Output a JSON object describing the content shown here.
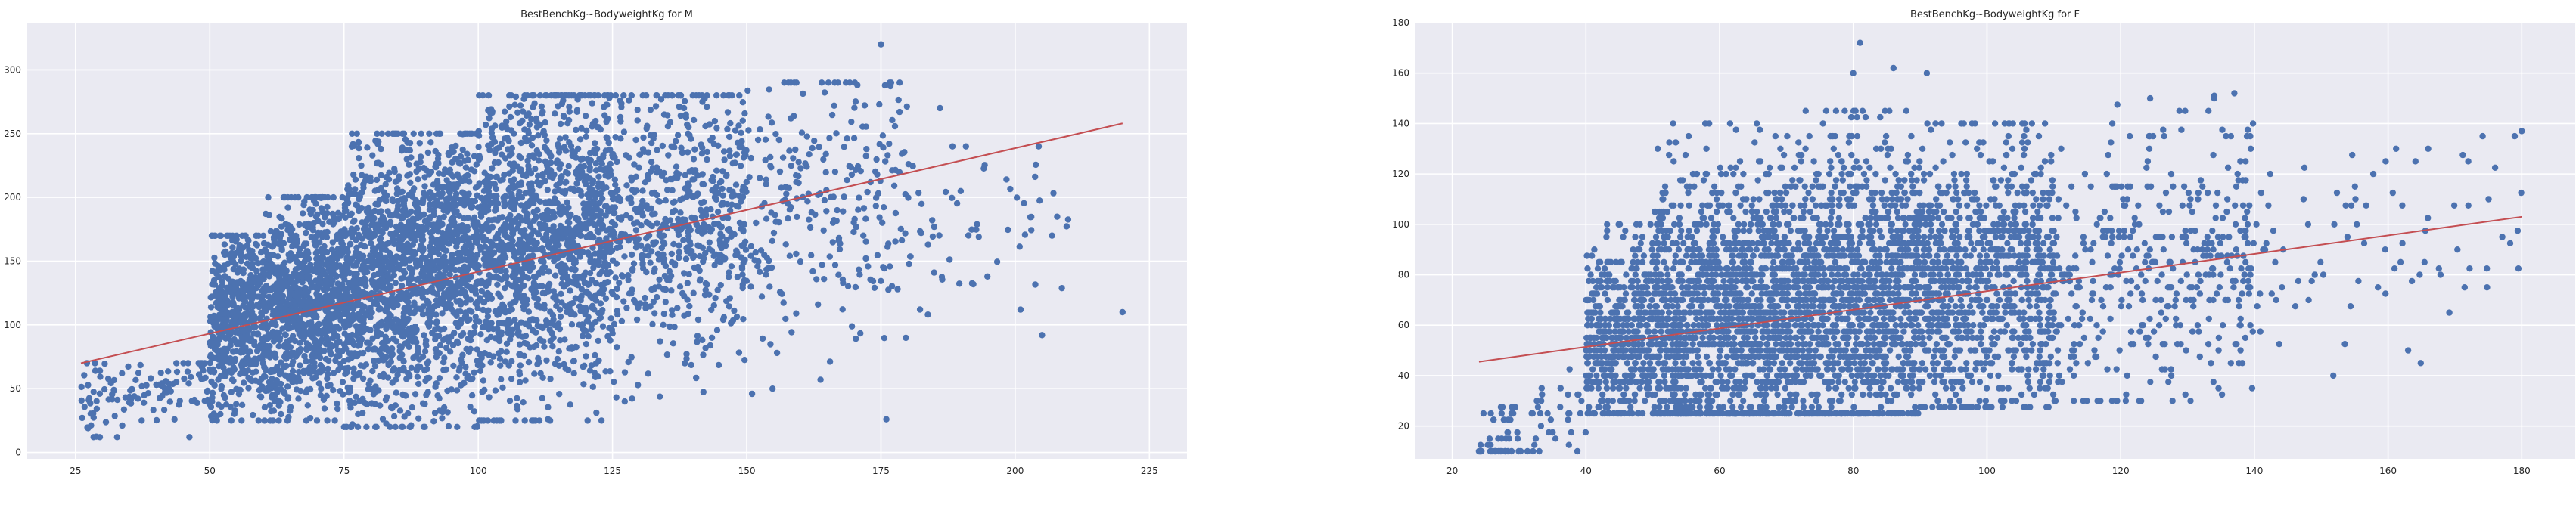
{
  "colors": {
    "background": "#eaeaf2",
    "grid": "#ffffff",
    "points": "#4c72b0",
    "fit_line": "#c44e52"
  },
  "chart_data": [
    {
      "type": "scatter",
      "title": "BestBenchKg~BodyweightKg for M",
      "xlabel": "",
      "ylabel": "",
      "xlim": [
        16,
        232
      ],
      "ylim": [
        -5,
        337
      ],
      "xticks": [
        "25",
        "50",
        "75",
        "100",
        "125",
        "150",
        "175",
        "200",
        "225"
      ],
      "yticks": [
        "0",
        "50",
        "100",
        "150",
        "200",
        "250",
        "300"
      ],
      "grid": true,
      "series": [
        {
          "kind": "points",
          "cloud": [
            {
              "x": [
                26,
                50
              ],
              "y_low": 12,
              "y_high": 70,
              "trend": [
                0.9,
                15
              ],
              "n": 120
            },
            {
              "x": [
                50,
                60
              ],
              "y_low": 25,
              "y_high": 170,
              "trend": [
                1.35,
                30
              ],
              "n": 500
            },
            {
              "x": [
                60,
                75
              ],
              "y_low": 25,
              "y_high": 200,
              "trend": [
                1.3,
                30
              ],
              "n": 900
            },
            {
              "x": [
                75,
                100
              ],
              "y_low": 20,
              "y_high": 250,
              "trend": [
                1.2,
                35
              ],
              "n": 1500
            },
            {
              "x": [
                100,
                125
              ],
              "y_low": 25,
              "y_high": 280,
              "trend": [
                1.05,
                50
              ],
              "n": 1300
            },
            {
              "x": [
                125,
                150
              ],
              "y_low": 40,
              "y_high": 280,
              "trend": [
                0.75,
                80
              ],
              "n": 600
            },
            {
              "x": [
                150,
                180
              ],
              "y_low": 50,
              "y_high": 290,
              "trend": [
                0.7,
                85
              ],
              "n": 250
            },
            {
              "x": [
                180,
                210
              ],
              "y_low": 80,
              "y_high": 240,
              "trend": [
                0.6,
                65
              ],
              "n": 60
            }
          ],
          "notable": [
            {
              "x": 175,
              "y": 320
            },
            {
              "x": 220,
              "y": 110
            },
            {
              "x": 205,
              "y": 92
            },
            {
              "x": 201,
              "y": 112
            },
            {
              "x": 176,
              "y": 26
            },
            {
              "x": 151,
              "y": 46
            },
            {
              "x": 113,
              "y": 26
            },
            {
              "x": 167,
              "y": 290
            },
            {
              "x": 186,
              "y": 270
            }
          ]
        },
        {
          "kind": "fit-line",
          "x": [
            26,
            220
          ],
          "y": [
            70,
            258
          ]
        }
      ]
    },
    {
      "type": "scatter",
      "title": "BestBenchKg~BodyweightKg for F",
      "xlabel": "",
      "ylabel": "",
      "xlim": [
        14.5,
        188
      ],
      "ylim": [
        7,
        180
      ],
      "xticks": [
        "20",
        "40",
        "60",
        "80",
        "100",
        "120",
        "140",
        "160",
        "180"
      ],
      "yticks": [
        "20",
        "40",
        "60",
        "80",
        "100",
        "120",
        "140",
        "160",
        "180"
      ],
      "grid": true,
      "series": [
        {
          "kind": "points",
          "cloud": [
            {
              "x": [
                24,
                40
              ],
              "y_low": 10,
              "y_high": 50,
              "trend": [
                1.1,
                -15
              ],
              "n": 80
            },
            {
              "x": [
                40,
                50
              ],
              "y_low": 25,
              "y_high": 100,
              "trend": [
                0.6,
                30
              ],
              "n": 500
            },
            {
              "x": [
                50,
                70
              ],
              "y_low": 25,
              "y_high": 140,
              "trend": [
                0.5,
                35
              ],
              "n": 1400
            },
            {
              "x": [
                70,
                90
              ],
              "y_low": 25,
              "y_high": 145,
              "trend": [
                0.4,
                40
              ],
              "n": 1400
            },
            {
              "x": [
                90,
                110
              ],
              "y_low": 28,
              "y_high": 140,
              "trend": [
                0.35,
                42
              ],
              "n": 900
            },
            {
              "x": [
                110,
                140
              ],
              "y_low": 30,
              "y_high": 150,
              "trend": [
                0.3,
                45
              ],
              "n": 400
            },
            {
              "x": [
                140,
                180
              ],
              "y_low": 40,
              "y_high": 135,
              "trend": [
                0.25,
                50
              ],
              "n": 80
            }
          ],
          "notable": [
            {
              "x": 81,
              "y": 172
            },
            {
              "x": 80,
              "y": 160
            },
            {
              "x": 86,
              "y": 162
            },
            {
              "x": 91,
              "y": 160
            },
            {
              "x": 24,
              "y": 10
            },
            {
              "x": 180,
              "y": 137
            },
            {
              "x": 163,
              "y": 50
            },
            {
              "x": 172,
              "y": 125
            },
            {
              "x": 134,
              "y": 151
            },
            {
              "x": 137,
              "y": 152
            },
            {
              "x": 166,
              "y": 130
            }
          ]
        },
        {
          "kind": "fit-line",
          "x": [
            24,
            180
          ],
          "y": [
            45.5,
            103
          ]
        }
      ]
    }
  ]
}
